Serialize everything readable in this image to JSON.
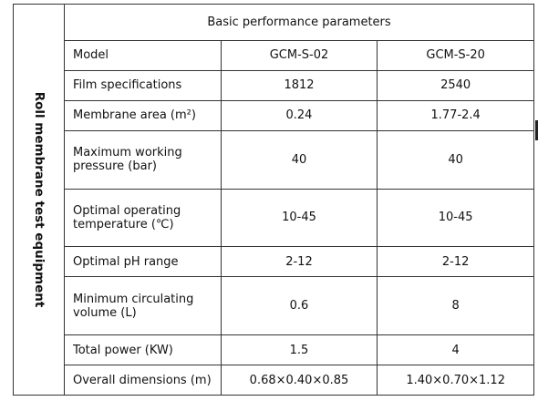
{
  "side_label": "Roll membrane test equipment",
  "table_title": "Basic performance parameters",
  "rows": [
    {
      "label": "Model",
      "v1": "GCM-S-02",
      "v2": "GCM-S-20"
    },
    {
      "label": "Film specifications",
      "v1": "1812",
      "v2": "2540"
    },
    {
      "label": "Membrane area (m²)",
      "v1": "0.24",
      "v2": "1.77-2.4"
    },
    {
      "label": "Maximum working pressure (bar)",
      "v1": "40",
      "v2": "40"
    },
    {
      "label": "Optimal operating temperature (℃)",
      "v1": "10-45",
      "v2": "10-45"
    },
    {
      "label": "Optimal pH range",
      "v1": "2-12",
      "v2": "2-12"
    },
    {
      "label": "Minimum circulating volume (L)",
      "v1": "0.6",
      "v2": "8"
    },
    {
      "label": "Total power (KW)",
      "v1": "1.5",
      "v2": "4"
    },
    {
      "label": "Overall dimensions (m)",
      "v1": "0.68×0.40×0.85",
      "v2": "1.40×0.70×1.12"
    }
  ]
}
